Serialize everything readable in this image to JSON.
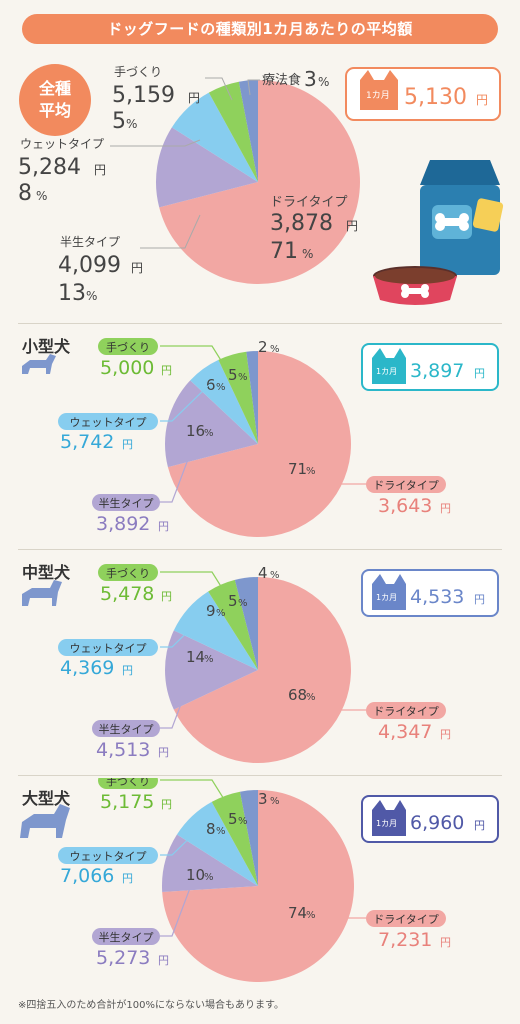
{
  "title": "ドッグフードの種類別1カ月あたりの平均額",
  "footnote": "※四捨五入のため合計が100%にならない場合もあります。",
  "badge_prefix": "1カ月",
  "yen": "円",
  "pct": "%",
  "overall_label": [
    "全種",
    "平均"
  ],
  "colors": {
    "dry": "#f2a7a3",
    "semi": "#b2a6d3",
    "wet": "#87cdef",
    "homemade": "#8fd15c",
    "therapy": "#7e97cd",
    "accent": "#f28a5e"
  },
  "chart_data": [
    {
      "type": "pie",
      "name": "全種平均",
      "total": "5,130",
      "slices": [
        {
          "key": "dry",
          "label": "ドライタイプ",
          "value": 71,
          "price": "3,878"
        },
        {
          "key": "semi",
          "label": "半生タイプ",
          "value": 13,
          "price": "4,099"
        },
        {
          "key": "wet",
          "label": "ウェットタイプ",
          "value": 8,
          "price": "5,284"
        },
        {
          "key": "homemade",
          "label": "手づくり",
          "value": 5,
          "price": "5,159"
        },
        {
          "key": "therapy",
          "label": "療法食",
          "value": 3,
          "price": ""
        }
      ]
    },
    {
      "type": "pie",
      "name": "小型犬",
      "total": "3,897",
      "slices": [
        {
          "key": "dry",
          "label": "ドライタイプ",
          "value": 71,
          "price": "3,643"
        },
        {
          "key": "semi",
          "label": "半生タイプ",
          "value": 16,
          "price": "3,892"
        },
        {
          "key": "wet",
          "label": "ウェットタイプ",
          "value": 6,
          "price": "5,742"
        },
        {
          "key": "homemade",
          "label": "手づくり",
          "value": 5,
          "price": "5,000"
        },
        {
          "key": "therapy",
          "label": "",
          "value": 2,
          "price": ""
        }
      ]
    },
    {
      "type": "pie",
      "name": "中型犬",
      "total": "4,533",
      "slices": [
        {
          "key": "dry",
          "label": "ドライタイプ",
          "value": 68,
          "price": "4,347"
        },
        {
          "key": "semi",
          "label": "半生タイプ",
          "value": 14,
          "price": "4,513"
        },
        {
          "key": "wet",
          "label": "ウェットタイプ",
          "value": 9,
          "price": "4,369"
        },
        {
          "key": "homemade",
          "label": "手づくり",
          "value": 5,
          "price": "5,478"
        },
        {
          "key": "therapy",
          "label": "",
          "value": 4,
          "price": ""
        }
      ]
    },
    {
      "type": "pie",
      "name": "大型犬",
      "total": "6,960",
      "slices": [
        {
          "key": "dry",
          "label": "ドライタイプ",
          "value": 74,
          "price": "7,231"
        },
        {
          "key": "semi",
          "label": "半生タイプ",
          "value": 10,
          "price": "5,273"
        },
        {
          "key": "wet",
          "label": "ウェットタイプ",
          "value": 8,
          "price": "7,066"
        },
        {
          "key": "homemade",
          "label": "手づくり",
          "value": 5,
          "price": "5,175"
        },
        {
          "key": "therapy",
          "label": "",
          "value": 3,
          "price": ""
        }
      ]
    }
  ]
}
